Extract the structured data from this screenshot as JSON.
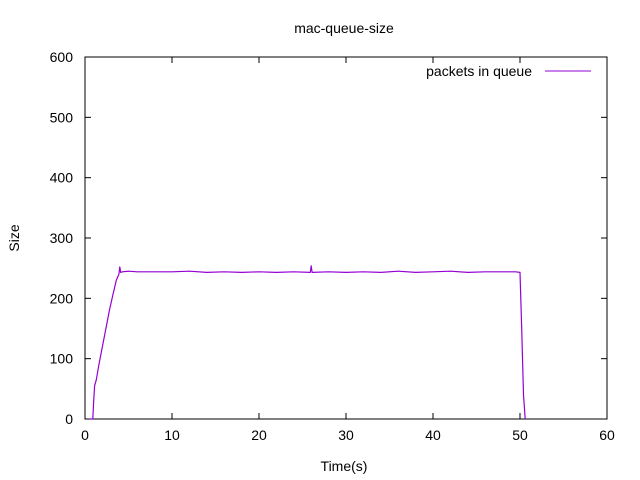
{
  "chart_data": {
    "type": "line",
    "title": "mac-queue-size",
    "xlabel": "Time(s)",
    "ylabel": "Size",
    "xlim": [
      0,
      60
    ],
    "ylim": [
      0,
      600
    ],
    "xticks": [
      0,
      10,
      20,
      30,
      40,
      50,
      60
    ],
    "yticks": [
      0,
      100,
      200,
      300,
      400,
      500,
      600
    ],
    "grid": false,
    "legend_position": "top-right",
    "series": [
      {
        "name": "packets in queue",
        "color": "#9400d3",
        "x": [
          0.5,
          0.9,
          1.0,
          1.1,
          1.3,
          1.6,
          2.0,
          2.4,
          2.8,
          3.2,
          3.6,
          3.9,
          4.0,
          4.1,
          4.3,
          5.0,
          6.0,
          8.0,
          10.0,
          12.0,
          14.0,
          16.0,
          18.0,
          20.0,
          22.0,
          24.0,
          25.9,
          26.0,
          26.1,
          28.0,
          30.0,
          32.0,
          34.0,
          36.0,
          38.0,
          40.0,
          42.0,
          44.0,
          46.0,
          48.0,
          49.5,
          50.0,
          50.2,
          50.4,
          50.6
        ],
        "y": [
          0,
          0,
          30,
          55,
          65,
          90,
          120,
          150,
          180,
          205,
          230,
          240,
          252,
          243,
          244,
          245,
          244,
          244,
          244,
          245,
          243,
          244,
          243,
          244,
          243,
          244,
          243,
          254,
          243,
          244,
          243,
          244,
          243,
          245,
          243,
          244,
          245,
          243,
          244,
          244,
          244,
          243,
          150,
          40,
          0
        ]
      }
    ]
  }
}
